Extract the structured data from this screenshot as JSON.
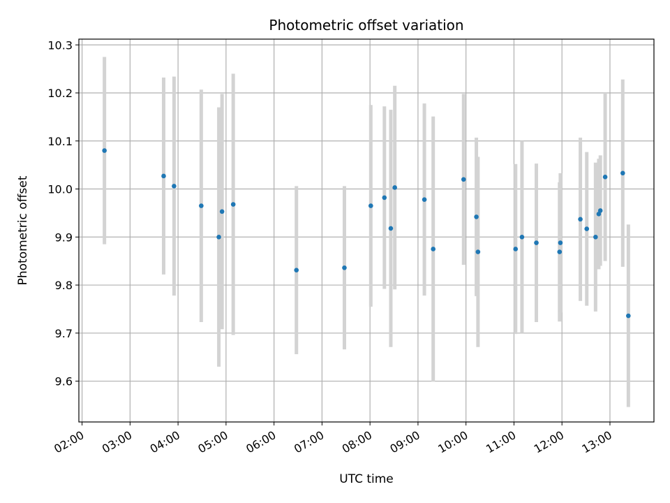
{
  "chart_data": {
    "type": "scatter",
    "title": "Photometric offset variation",
    "xlabel": "UTC time",
    "ylabel": "Photometric offset",
    "x_tick_labels": [
      "02:00",
      "03:00",
      "04:00",
      "05:00",
      "06:00",
      "07:00",
      "08:00",
      "09:00",
      "10:00",
      "11:00",
      "12:00",
      "13:00"
    ],
    "y_tick_labels": [
      "9.6",
      "9.7",
      "9.8",
      "9.9",
      "10.0",
      "10.1",
      "10.2",
      "10.3"
    ],
    "y_ticks": [
      9.6,
      9.7,
      9.8,
      9.9,
      10.0,
      10.1,
      10.2,
      10.3
    ],
    "xlim": [
      "01:56",
      "13:55"
    ],
    "ylim": [
      9.515,
      10.312
    ],
    "grid": true,
    "colors": {
      "point": "#1f77b4",
      "errorbar": "#d3d3d3",
      "grid": "#b0b0b0"
    },
    "series": [
      {
        "points": [
          {
            "x": "02:28",
            "y": 10.08,
            "err": 0.195
          },
          {
            "x": "03:42",
            "y": 10.027,
            "err": 0.205
          },
          {
            "x": "03:55",
            "y": 10.006,
            "err": 0.228
          },
          {
            "x": "04:29",
            "y": 9.965,
            "err": 0.242
          },
          {
            "x": "04:51",
            "y": 9.9,
            "err": 0.27
          },
          {
            "x": "04:55",
            "y": 9.953,
            "err": 0.245
          },
          {
            "x": "05:09",
            "y": 9.968,
            "err": 0.272
          },
          {
            "x": "06:28",
            "y": 9.831,
            "err": 0.175
          },
          {
            "x": "07:28",
            "y": 9.836,
            "err": 0.17
          },
          {
            "x": "08:01",
            "y": 9.965,
            "err": 0.21
          },
          {
            "x": "08:18",
            "y": 9.982,
            "err": 0.19
          },
          {
            "x": "08:26",
            "y": 9.918,
            "err": 0.247
          },
          {
            "x": "08:31",
            "y": 10.003,
            "err": 0.212
          },
          {
            "x": "09:08",
            "y": 9.978,
            "err": 0.2
          },
          {
            "x": "09:19",
            "y": 9.875,
            "err": 0.276
          },
          {
            "x": "09:57",
            "y": 10.02,
            "err": 0.178
          },
          {
            "x": "10:13",
            "y": 9.942,
            "err": 0.165
          },
          {
            "x": "10:15",
            "y": 9.869,
            "err": 0.198
          },
          {
            "x": "11:02",
            "y": 9.875,
            "err": 0.177
          },
          {
            "x": "11:10",
            "y": 9.9,
            "err": 0.2
          },
          {
            "x": "11:28",
            "y": 9.888,
            "err": 0.165
          },
          {
            "x": "11:57",
            "y": 9.869,
            "err": 0.145
          },
          {
            "x": "11:58",
            "y": 9.888,
            "err": 0.145
          },
          {
            "x": "12:23",
            "y": 9.937,
            "err": 0.17
          },
          {
            "x": "12:31",
            "y": 9.917,
            "err": 0.16
          },
          {
            "x": "12:42",
            "y": 9.9,
            "err": 0.155
          },
          {
            "x": "12:46",
            "y": 9.948,
            "err": 0.115
          },
          {
            "x": "12:48",
            "y": 9.955,
            "err": 0.115
          },
          {
            "x": "12:54",
            "y": 10.025,
            "err": 0.175
          },
          {
            "x": "13:16",
            "y": 10.033,
            "err": 0.195
          },
          {
            "x": "13:23",
            "y": 9.736,
            "err": 0.19
          }
        ]
      }
    ]
  }
}
